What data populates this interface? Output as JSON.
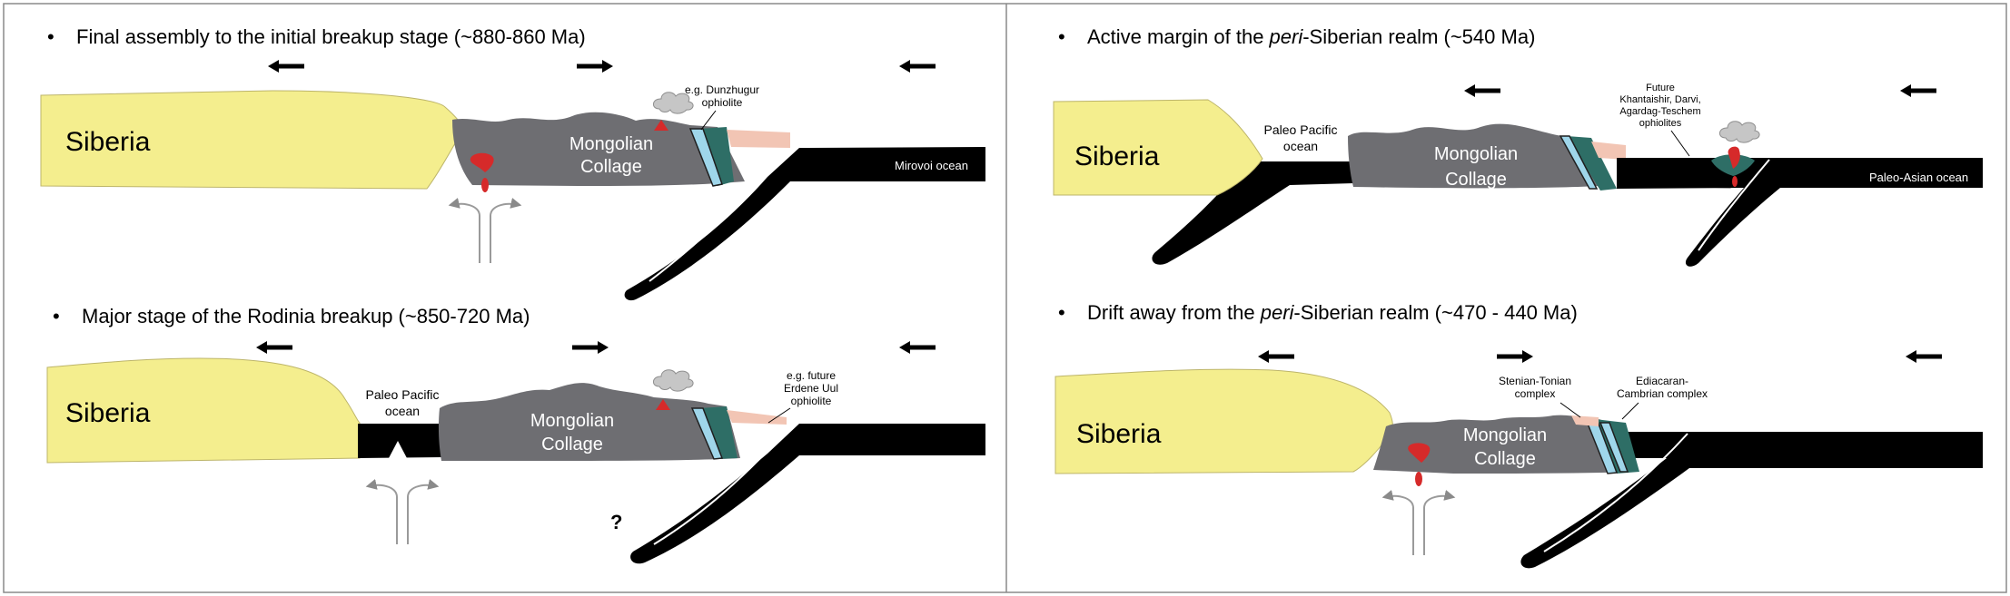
{
  "panels": {
    "p1": {
      "title": "Final assembly to the initial breakup stage (~880-860 Ma)",
      "siberia": "Siberia",
      "collage_line1": "Mongolian",
      "collage_line2": "Collage",
      "ocean": "Mirovoi ocean",
      "note_line1": "e.g. Dunzhugur",
      "note_line2": "ophiolite"
    },
    "p2": {
      "title_pre": "Active margin of the ",
      "title_italic": "peri",
      "title_post": "-Siberian realm (~540 Ma)",
      "siberia": "Siberia",
      "collage_line1": "Mongolian",
      "collage_line2": "Collage",
      "pacific_line1": "Paleo Pacific",
      "pacific_line2": "ocean",
      "ocean": "Paleo-Asian ocean",
      "note_line1": "Future",
      "note_line2": "Khantaishir, Darvi,",
      "note_line3": "Agardag-Teschem",
      "note_line4": "ophiolites"
    },
    "p3": {
      "title": "Major stage of the Rodinia breakup (~850-720 Ma)",
      "siberia": "Siberia",
      "collage_line1": "Mongolian",
      "collage_line2": "Collage",
      "pacific_line1": "Paleo Pacific",
      "pacific_line2": "ocean",
      "note_line1": "e.g. future",
      "note_line2": "Erdene Uul",
      "note_line3": "ophiolite",
      "question": "?"
    },
    "p4": {
      "title_pre": "Drift away from the ",
      "title_italic": "peri",
      "title_post": "-Siberian realm (~470 - 440 Ma)",
      "siberia": "Siberia",
      "collage_line1": "Mongolian",
      "collage_line2": "Collage",
      "note_a_line1": "Stenian-Tonian",
      "note_a_line2": "complex",
      "note_b_line1": "Ediacaran-",
      "note_b_line2": "Cambrian complex"
    }
  },
  "bullet": "•",
  "colors": {
    "siberia_fill": "#f4ee8e",
    "collage_fill": "#6e6e72",
    "ocean_fill": "#000000",
    "magma": "#d62a2a",
    "ophiolite_teal": "#2e6e66",
    "ophiolite_light": "#9fd6ea",
    "plume_gray": "#c6c6c6",
    "pink": "#f2c5b4"
  },
  "icons": [
    "arrow-left-icon",
    "arrow-right-icon",
    "volcanic-cloud-icon",
    "mantle-upwelling-icon"
  ]
}
